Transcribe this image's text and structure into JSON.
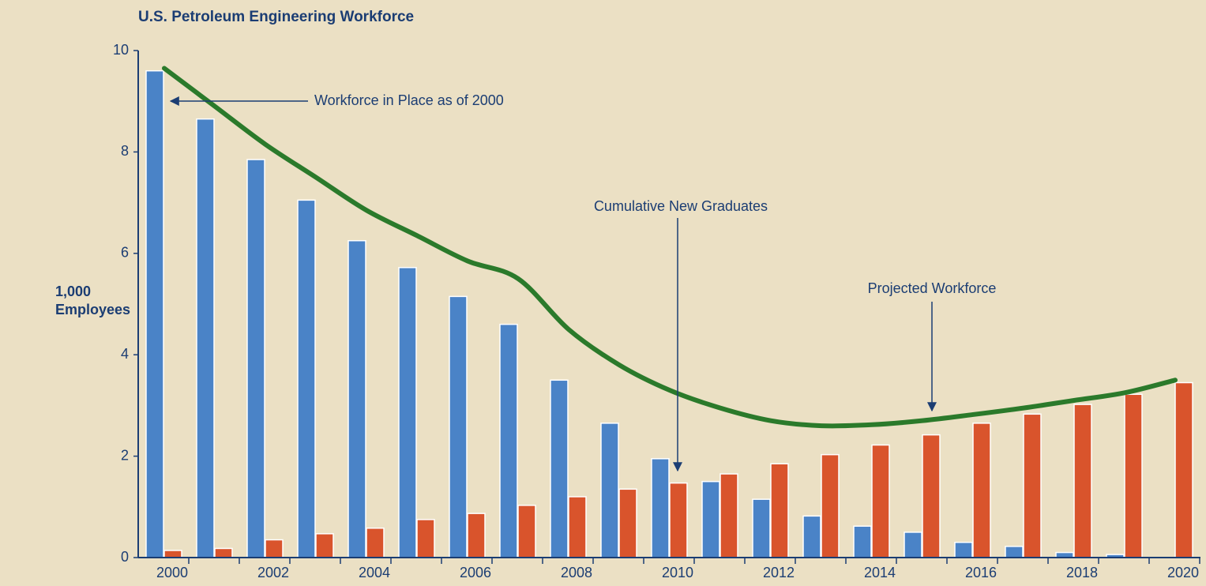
{
  "chart_data": {
    "type": "bar",
    "title": "U.S. Petroleum Engineering Workforce",
    "ylabel": [
      "1,000",
      "Employees"
    ],
    "categories": [
      "2000",
      null,
      "2002",
      null,
      "2004",
      null,
      "2006",
      null,
      "2008",
      null,
      "2010",
      null,
      "2012",
      null,
      "2014",
      null,
      "2016",
      null,
      "2018",
      null,
      "2020"
    ],
    "series": [
      {
        "name": "Workforce in Place as of 2000",
        "color": "#4a83c7",
        "kind": "bar",
        "values": [
          9.6,
          8.65,
          7.85,
          7.05,
          6.25,
          5.72,
          5.15,
          4.6,
          3.5,
          2.65,
          1.95,
          1.5,
          1.15,
          0.82,
          0.62,
          0.5,
          0.3,
          0.22,
          0.1,
          0.06,
          0
        ]
      },
      {
        "name": "Cumulative New Graduates",
        "color": "#d9542c",
        "kind": "bar",
        "values": [
          0.14,
          0.18,
          0.35,
          0.47,
          0.58,
          0.75,
          0.87,
          1.03,
          1.2,
          1.35,
          1.47,
          1.65,
          1.85,
          2.03,
          2.22,
          2.42,
          2.65,
          2.83,
          3.02,
          3.22,
          3.45
        ]
      },
      {
        "name": "Projected Workforce",
        "color": "#2b7a2b",
        "kind": "line",
        "values": [
          9.65,
          8.9,
          8.15,
          7.5,
          6.85,
          6.35,
          5.85,
          5.5,
          4.5,
          3.8,
          3.3,
          2.95,
          2.7,
          2.6,
          2.62,
          2.7,
          2.82,
          2.95,
          3.1,
          3.25,
          3.5
        ]
      }
    ],
    "ylim": [
      0,
      10
    ],
    "yticks": [
      0,
      2,
      4,
      6,
      8,
      10
    ],
    "grid": false
  }
}
